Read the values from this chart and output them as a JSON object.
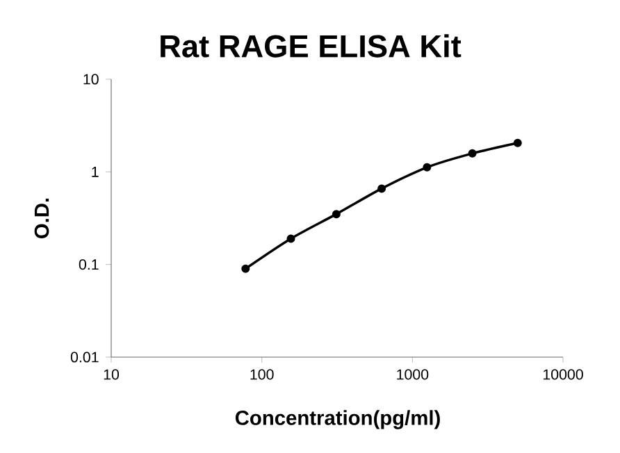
{
  "chart_data": {
    "type": "line",
    "title": "Rat RAGE ELISA Kit",
    "xlabel": "Concentration(pg/ml)",
    "ylabel": "O.D.",
    "x": [
      78,
      156,
      312.5,
      625,
      1250,
      2500,
      5000
    ],
    "values": [
      0.09,
      0.19,
      0.35,
      0.66,
      1.12,
      1.58,
      2.05
    ],
    "color": "#000000",
    "marker": "circle",
    "line_style": "solid",
    "log": "xy",
    "grid": false,
    "xlim": [
      10,
      10000
    ],
    "ylim": [
      0.01,
      10
    ],
    "xticks": [
      10,
      100,
      1000,
      10000
    ],
    "yticks": [
      0.01,
      0.1,
      1,
      10
    ]
  }
}
